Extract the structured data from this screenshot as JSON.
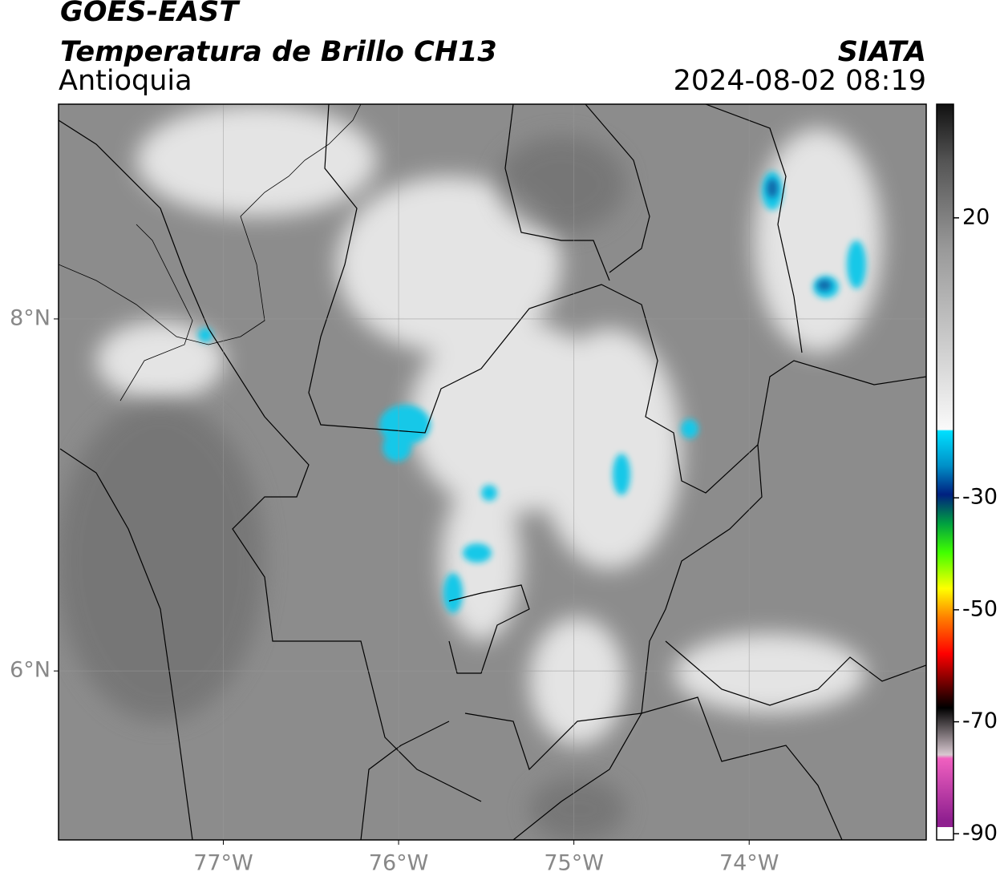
{
  "header": {
    "title": "GOES-EAST",
    "subtitle": "Temperatura de Brillo CH13",
    "region": "Antioquia",
    "source": "SIATA",
    "datetime": "2024-08-02 08:19"
  },
  "map": {
    "xlim": [
      -77.94,
      -72.99
    ],
    "ylim": [
      5.04,
      9.22
    ],
    "xticks": [
      {
        "value": -77,
        "label": "77°W"
      },
      {
        "value": -76,
        "label": "76°W"
      },
      {
        "value": -75,
        "label": "75°W"
      },
      {
        "value": -74,
        "label": "74°W"
      }
    ],
    "yticks": [
      {
        "value": 8,
        "label": "8°N"
      },
      {
        "value": 6,
        "label": "6°N"
      }
    ],
    "grid": true
  },
  "colorbar": {
    "range": [
      40.3,
      -91.1
    ],
    "ticks": [
      20,
      -30,
      -50,
      -70,
      -90
    ]
  }
}
